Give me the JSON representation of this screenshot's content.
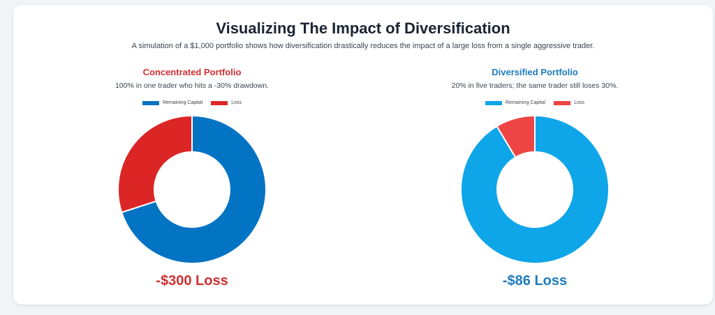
{
  "header": {
    "title": "Visualizing The Impact of Diversification",
    "subtitle": "A simulation of a $1,000 portfolio shows how diversification drastically reduces the impact of a large loss from a single aggressive trader."
  },
  "chart_data": [
    {
      "type": "pie",
      "variant": "doughnut",
      "title": "Concentrated Portfolio",
      "description": "100% in one trader who hits a -30% drawdown.",
      "legend": [
        "Remaining Capital",
        "Loss"
      ],
      "legend_position": "top",
      "slices": [
        {
          "label": "Remaining Capital",
          "value": 700,
          "color": "#0373c4"
        },
        {
          "label": "Loss",
          "value": 300,
          "color": "#dc2626"
        }
      ],
      "title_color": "#d12f2f",
      "result_text": "-$300 Loss",
      "result_color": "#d12f2f"
    },
    {
      "type": "pie",
      "variant": "doughnut",
      "title": "Diversified Portfolio",
      "description": "20% in five traders; the same trader still loses 30%.",
      "legend": [
        "Remaining Capital",
        "Loss"
      ],
      "legend_position": "top",
      "slices": [
        {
          "label": "Remaining Capital",
          "value": 914,
          "color": "#0ea5e9"
        },
        {
          "label": "Loss",
          "value": 86,
          "color": "#ef4444"
        }
      ],
      "title_color": "#1d7bbd",
      "result_text": "-$86 Loss",
      "result_color": "#1d7bbd"
    }
  ]
}
